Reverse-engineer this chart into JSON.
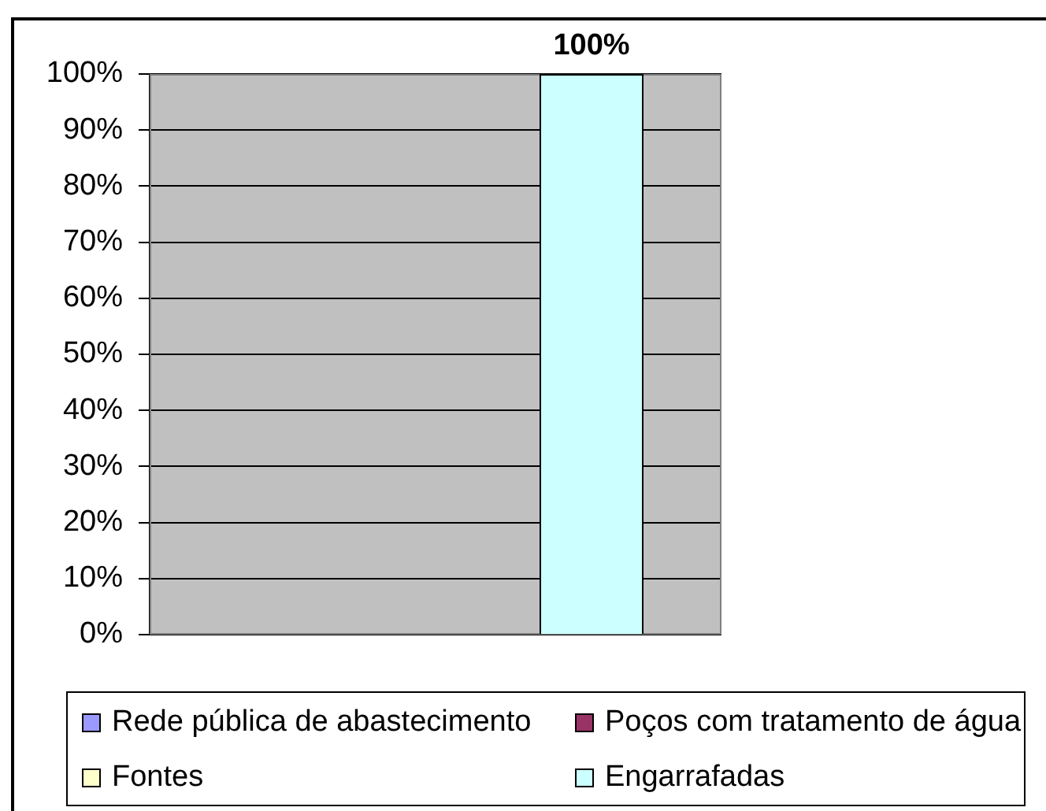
{
  "chart_data": {
    "type": "bar",
    "categories": [
      null
    ],
    "series": [
      {
        "name": "Rede pública de abastecimento",
        "color": "#9999ff",
        "values": [
          0
        ]
      },
      {
        "name": "Poços com tratamento de água",
        "color": "#993366",
        "values": [
          0
        ]
      },
      {
        "name": "Fontes",
        "color": "#ffffcc",
        "values": [
          0
        ]
      },
      {
        "name": "Engarrafadas",
        "color": "#ccffff",
        "values": [
          100
        ],
        "value_labels": [
          "100%"
        ]
      }
    ],
    "ylim": [
      0,
      100
    ],
    "yticks": [
      {
        "value": 0,
        "label": "0%"
      },
      {
        "value": 10,
        "label": "10%"
      },
      {
        "value": 20,
        "label": "20%"
      },
      {
        "value": 30,
        "label": "30%"
      },
      {
        "value": 40,
        "label": "40%"
      },
      {
        "value": 50,
        "label": "50%"
      },
      {
        "value": 60,
        "label": "60%"
      },
      {
        "value": 70,
        "label": "70%"
      },
      {
        "value": 80,
        "label": "80%"
      },
      {
        "value": 90,
        "label": "90%"
      },
      {
        "value": 100,
        "label": "100%"
      }
    ],
    "grid": "y",
    "legend": "bottom"
  }
}
